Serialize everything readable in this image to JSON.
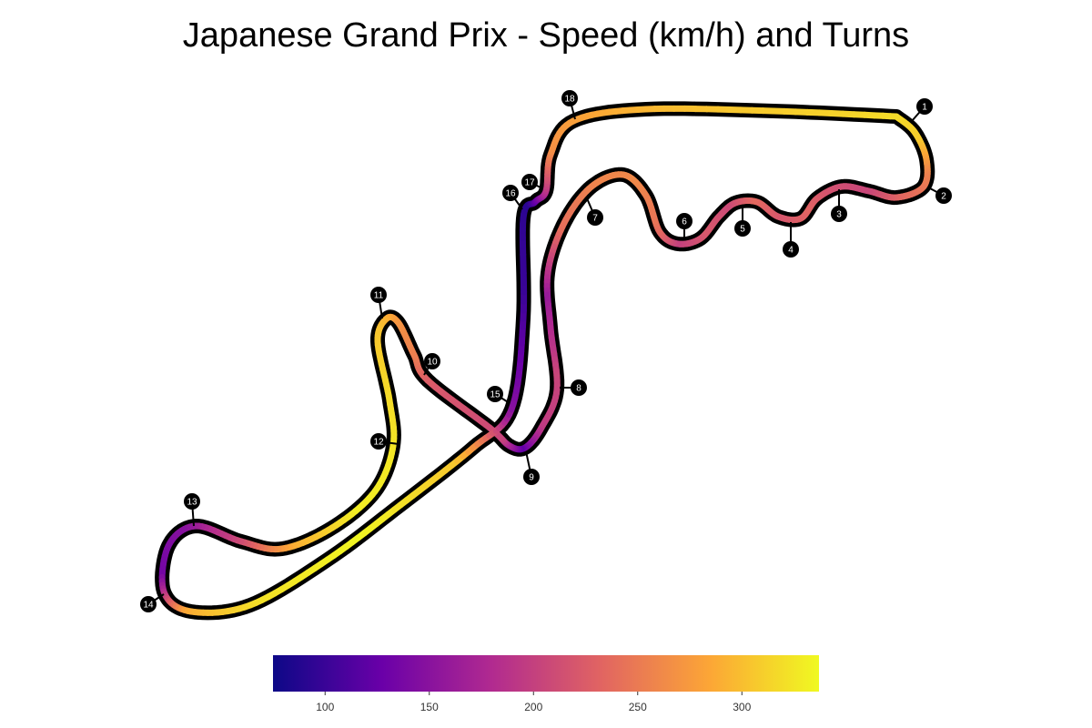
{
  "title": "Japanese Grand Prix - Speed (km/h) and Turns",
  "colors": {
    "outline": "#000000",
    "colormap": [
      "#0d0887",
      "#6a00a8",
      "#b12a90",
      "#e16462",
      "#fca636",
      "#f0f921"
    ]
  },
  "colorbar": {
    "min": 75,
    "max": 337,
    "ticks": [
      100,
      150,
      200,
      250,
      300
    ]
  },
  "turns": [
    {
      "number": "1"
    },
    {
      "number": "2"
    },
    {
      "number": "3"
    },
    {
      "number": "4"
    },
    {
      "number": "5"
    },
    {
      "number": "6"
    },
    {
      "number": "7"
    },
    {
      "number": "8"
    },
    {
      "number": "9"
    },
    {
      "number": "10"
    },
    {
      "number": "11"
    },
    {
      "number": "12"
    },
    {
      "number": "13"
    },
    {
      "number": "14"
    },
    {
      "number": "15"
    },
    {
      "number": "16"
    },
    {
      "number": "17"
    },
    {
      "number": "18"
    }
  ],
  "speed_profile": [
    318,
    310,
    255,
    235,
    205,
    215,
    232,
    220,
    236,
    208,
    222,
    200,
    245,
    262,
    258,
    240,
    160,
    205,
    195,
    120,
    202,
    222,
    255,
    275,
    302,
    318,
    325,
    330,
    290,
    210,
    150,
    135,
    285,
    322,
    335,
    305,
    150,
    100,
    90,
    175,
    265,
    285,
    305,
    318
  ]
}
